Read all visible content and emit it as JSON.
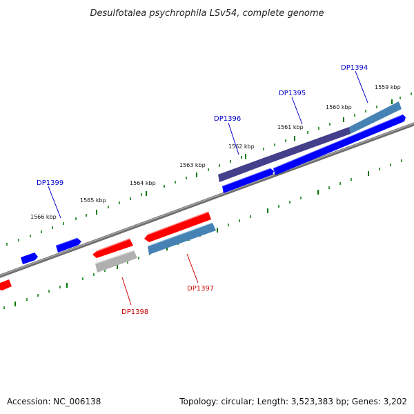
{
  "title": "Desulfotalea psychrophila LSv54, complete genome",
  "footer": {
    "accession": "Accession: NC_006138",
    "summary": "Topology: circular; Length: 3,523,383 bp; Genes: 3,202"
  },
  "colors": {
    "forward": "#0000ff",
    "reverse": "#ff0000",
    "label_forward": "#0000cc",
    "label_reverse": "#cc0000",
    "backbone": "#808080",
    "ticks": "#007700",
    "highlight_purple": "#443f8a",
    "highlight_steel": "#4682b4",
    "highlight_grey": "#b0b0b0"
  },
  "scale_labels": [
    "1559 kbp",
    "1560 kbp",
    "1561 kbp",
    "1562 kbp",
    "1563 kbp",
    "1564 kbp",
    "1565 kbp",
    "1566 kbp"
  ],
  "gene_labels": {
    "forward": [
      "DP1394",
      "DP1395",
      "DP1396",
      "DP1399"
    ],
    "reverse": [
      "DP1397",
      "DP1398"
    ]
  }
}
